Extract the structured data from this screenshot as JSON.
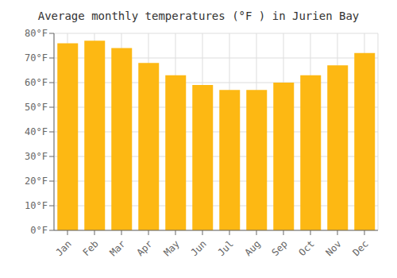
{
  "chart_data": {
    "type": "bar",
    "title": "Average monthly temperatures (°F ) in Jurien Bay",
    "categories": [
      "Jan",
      "Feb",
      "Mar",
      "Apr",
      "May",
      "Jun",
      "Jul",
      "Aug",
      "Sep",
      "Oct",
      "Nov",
      "Dec"
    ],
    "values": [
      76,
      77,
      74,
      68,
      63,
      59,
      57,
      57,
      60,
      63,
      67,
      72
    ],
    "color": "#FDB813",
    "ylim": [
      0,
      80
    ],
    "yticks": [
      {
        "value": 0,
        "label": "0°F"
      },
      {
        "value": 10,
        "label": "10°F"
      },
      {
        "value": 20,
        "label": "20°F"
      },
      {
        "value": 30,
        "label": "30°F"
      },
      {
        "value": 40,
        "label": "40°F"
      },
      {
        "value": 50,
        "label": "50°F"
      },
      {
        "value": 60,
        "label": "60°F"
      },
      {
        "value": 70,
        "label": "70°F"
      },
      {
        "value": 80,
        "label": "80°F"
      }
    ],
    "grid": true
  }
}
